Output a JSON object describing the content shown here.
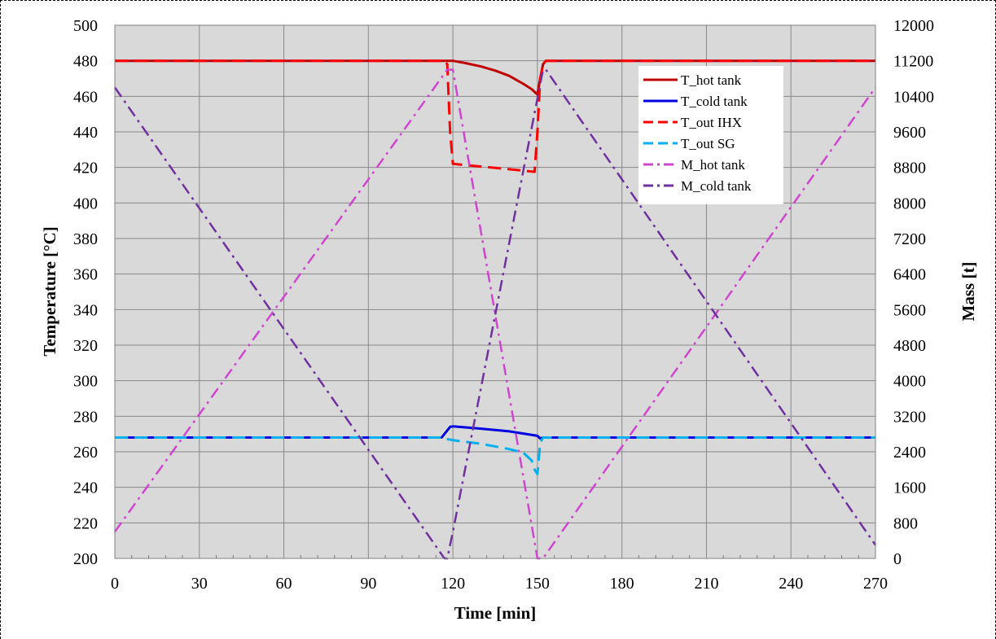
{
  "chart_data": {
    "type": "line",
    "xlabel": "Time [min]",
    "ylabel": "Temperature [°C]",
    "y2label": "Mass [t]",
    "xlim": [
      0,
      270
    ],
    "ylim": [
      200,
      500
    ],
    "y2lim": [
      0,
      12000
    ],
    "xticks": [
      "0",
      "30",
      "60",
      "90",
      "120",
      "150",
      "180",
      "210",
      "240",
      "270"
    ],
    "yticks": [
      "200",
      "220",
      "240",
      "260",
      "280",
      "300",
      "320",
      "340",
      "360",
      "380",
      "400",
      "420",
      "440",
      "460",
      "480",
      "500"
    ],
    "y2ticks": [
      "0",
      "800",
      "1600",
      "2400",
      "3200",
      "4000",
      "4800",
      "5600",
      "6400",
      "7200",
      "8000",
      "8800",
      "9600",
      "10400",
      "11200",
      "12000"
    ],
    "grid": true,
    "legend_position": "upper-right",
    "series": [
      {
        "name": "T_hot tank",
        "axis": "left",
        "color": "#c00000",
        "style": "solid",
        "x": [
          0,
          117,
          120,
          125,
          130,
          135,
          140,
          145,
          148,
          150,
          151,
          152,
          153,
          270
        ],
        "y": [
          480,
          480,
          480,
          478.5,
          476.8,
          474.5,
          471.5,
          467,
          464,
          461,
          470,
          478,
          480,
          480
        ]
      },
      {
        "name": "T_cold tank",
        "axis": "left",
        "color": "#0000e0",
        "style": "solid",
        "x": [
          0,
          116,
          117,
          118,
          119,
          120,
          130,
          140,
          150,
          151,
          152,
          270
        ],
        "y": [
          268,
          268,
          270,
          272,
          274,
          274.3,
          273,
          271.5,
          269,
          267.5,
          268,
          268
        ]
      },
      {
        "name": "T_out IHX",
        "axis": "left",
        "color": "#ff0000",
        "style": "dashed",
        "x": [
          0,
          117,
          118,
          119,
          120,
          130,
          140,
          149,
          150,
          151,
          152,
          153,
          270
        ],
        "y": [
          480,
          480,
          478,
          440,
          422,
          420.5,
          419,
          417.5,
          440,
          470,
          478,
          480,
          480
        ]
      },
      {
        "name": "T_out SG",
        "axis": "left",
        "color": "#00b0f0",
        "style": "dashed",
        "x": [
          0,
          116,
          117,
          120,
          130,
          140,
          145,
          148,
          149,
          150,
          151,
          152,
          270
        ],
        "y": [
          268,
          268,
          267.5,
          266.5,
          264.5,
          261.5,
          259.5,
          255,
          250,
          247.5,
          265,
          268,
          268
        ]
      },
      {
        "name": "M_hot tank",
        "axis": "right",
        "color": "#d045d0",
        "style": "dashdot",
        "x": [
          0,
          118,
          120,
          150,
          152,
          270
        ],
        "y": [
          600,
          11000,
          11000,
          0,
          0,
          10600
        ]
      },
      {
        "name": "M_cold tank",
        "axis": "right",
        "color": "#7030a0",
        "style": "dashdot",
        "x": [
          0,
          117,
          118,
          120,
          152,
          153,
          270
        ],
        "y": [
          10600,
          0,
          0,
          600,
          11000,
          11000,
          300
        ]
      }
    ]
  }
}
